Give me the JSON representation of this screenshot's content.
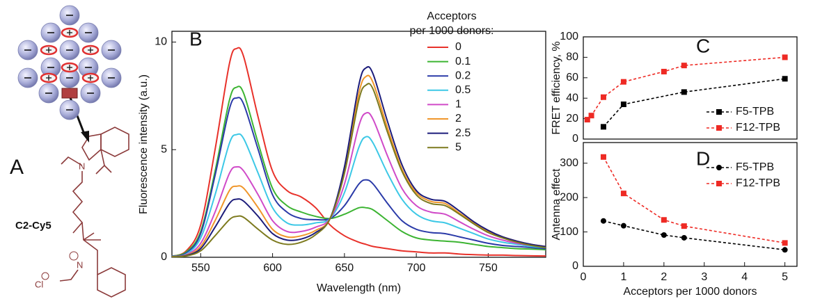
{
  "panel_a": {
    "label": "A",
    "molecule": "C2-Cy5",
    "nitrogen": "N",
    "counterion": "Cl"
  },
  "chart_data": [
    {
      "type": "line",
      "panel_label": "B",
      "x_label": "Wavelength (nm)",
      "y_label": "Fluorescence intensity (a.u.)",
      "smooth": true,
      "legend_position": "upper right",
      "legend_title": [
        "Acceptors",
        "per 1000 donors:"
      ],
      "x": [
        530,
        540,
        550,
        560,
        570,
        575,
        580,
        590,
        600,
        610,
        620,
        630,
        640,
        650,
        660,
        665,
        670,
        680,
        690,
        700,
        710,
        720,
        730,
        740,
        750,
        760,
        770,
        780,
        790
      ],
      "xlim": [
        530,
        790
      ],
      "xticks": [
        550,
        600,
        650,
        700,
        750
      ],
      "ylim": [
        0,
        10.5
      ],
      "yticks": [
        0,
        5,
        10
      ],
      "series": [
        {
          "name": "0",
          "color": "#e8312a",
          "values": [
            0.05,
            0.3,
            1.5,
            5.0,
            9.0,
            9.7,
            9.3,
            6.5,
            4.0,
            3.1,
            2.8,
            2.3,
            1.5,
            1.0,
            0.7,
            0.6,
            0.5,
            0.4,
            0.3,
            0.25,
            0.2,
            0.2,
            0.15,
            0.12,
            0.1,
            0.1,
            0.08,
            0.07,
            0.06
          ]
        },
        {
          "name": "0.1",
          "color": "#3cb432",
          "values": [
            0.05,
            0.25,
            1.2,
            4.0,
            7.3,
            7.9,
            7.6,
            5.3,
            3.2,
            2.4,
            2.1,
            1.9,
            1.8,
            2.0,
            2.3,
            2.3,
            2.2,
            1.7,
            1.2,
            0.9,
            0.8,
            0.75,
            0.7,
            0.6,
            0.5,
            0.45,
            0.4,
            0.38,
            0.35
          ]
        },
        {
          "name": "0.2",
          "color": "#2a3aa8",
          "values": [
            0.05,
            0.2,
            1.1,
            3.8,
            6.9,
            7.4,
            7.1,
            5.0,
            2.9,
            2.1,
            1.8,
            1.75,
            1.8,
            2.4,
            3.4,
            3.6,
            3.4,
            2.5,
            1.7,
            1.3,
            1.15,
            1.1,
            0.95,
            0.8,
            0.65,
            0.55,
            0.5,
            0.45,
            0.4
          ]
        },
        {
          "name": "0.5",
          "color": "#3cc8e6",
          "values": [
            0.04,
            0.15,
            0.9,
            2.9,
            5.3,
            5.7,
            5.5,
            3.9,
            2.3,
            1.6,
            1.5,
            1.6,
            1.8,
            3.0,
            5.1,
            5.6,
            5.3,
            3.9,
            2.7,
            2.0,
            1.7,
            1.6,
            1.35,
            1.1,
            0.85,
            0.7,
            0.6,
            0.5,
            0.45
          ]
        },
        {
          "name": "1",
          "color": "#d04ac8",
          "values": [
            0.03,
            0.12,
            0.65,
            2.1,
            3.9,
            4.2,
            4.0,
            2.9,
            1.7,
            1.2,
            1.2,
            1.4,
            1.8,
            3.4,
            6.1,
            6.7,
            6.4,
            4.7,
            3.2,
            2.4,
            2.1,
            2.0,
            1.65,
            1.3,
            1.0,
            0.8,
            0.65,
            0.55,
            0.5
          ]
        },
        {
          "name": "2",
          "color": "#f0962a",
          "values": [
            0.03,
            0.1,
            0.5,
            1.7,
            3.1,
            3.3,
            3.2,
            2.3,
            1.3,
            0.95,
            1.0,
            1.25,
            1.8,
            4.0,
            7.6,
            8.4,
            8.1,
            6.0,
            4.1,
            3.0,
            2.6,
            2.5,
            2.05,
            1.6,
            1.2,
            0.95,
            0.75,
            0.6,
            0.5
          ]
        },
        {
          "name": "2.5",
          "color": "#1c1c7a",
          "values": [
            0.02,
            0.08,
            0.4,
            1.4,
            2.5,
            2.7,
            2.6,
            1.9,
            1.1,
            0.8,
            0.85,
            1.15,
            1.8,
            4.2,
            8.0,
            8.8,
            8.5,
            6.3,
            4.3,
            3.1,
            2.7,
            2.6,
            2.15,
            1.65,
            1.25,
            0.95,
            0.75,
            0.6,
            0.5
          ]
        },
        {
          "name": "5",
          "color": "#7d7a1e",
          "values": [
            0.02,
            0.06,
            0.3,
            1.0,
            1.75,
            1.9,
            1.85,
            1.3,
            0.8,
            0.6,
            0.7,
            1.05,
            1.8,
            3.9,
            7.3,
            8.0,
            7.8,
            5.8,
            4.0,
            2.9,
            2.5,
            2.4,
            2.0,
            1.55,
            1.15,
            0.9,
            0.7,
            0.55,
            0.45
          ]
        }
      ]
    },
    {
      "type": "line",
      "panel_label": "C",
      "y_label": "FRET efficiency, %",
      "line_style": "dashed",
      "legend_position": "lower right",
      "xlim": [
        0,
        5.3
      ],
      "ylim": [
        0,
        100
      ],
      "yticks": [
        0,
        20,
        40,
        60,
        80,
        100
      ],
      "series": [
        {
          "name": "F5-TPB",
          "color": "#000000",
          "marker": "square",
          "x": [
            0.5,
            1,
            2.5,
            5
          ],
          "values": [
            12,
            34,
            46,
            59
          ]
        },
        {
          "name": "F12-TPB",
          "color": "#ee2a24",
          "marker": "square",
          "x": [
            0.1,
            0.2,
            0.5,
            1,
            2,
            2.5,
            5
          ],
          "values": [
            19,
            23,
            41,
            56,
            66,
            72,
            80
          ]
        }
      ]
    },
    {
      "type": "line",
      "panel_label": "D",
      "y_label": "Antenna effect",
      "x_label": "Acceptors per 1000 donors",
      "line_style": "dashed",
      "legend_position": "upper right",
      "xlim": [
        0,
        5.3
      ],
      "xticks": [
        0,
        1,
        2,
        3,
        4,
        5
      ],
      "ylim": [
        0,
        360
      ],
      "yticks": [
        0,
        100,
        200,
        300
      ],
      "series": [
        {
          "name": "F5-TPB",
          "color": "#000000",
          "marker": "circle",
          "x": [
            0.5,
            1,
            2,
            2.5,
            5
          ],
          "values": [
            132,
            118,
            91,
            83,
            48
          ]
        },
        {
          "name": "F12-TPB",
          "color": "#ee2a24",
          "marker": "square",
          "x": [
            0.5,
            1,
            2,
            2.5,
            5
          ],
          "values": [
            318,
            212,
            135,
            117,
            68
          ]
        }
      ]
    }
  ]
}
